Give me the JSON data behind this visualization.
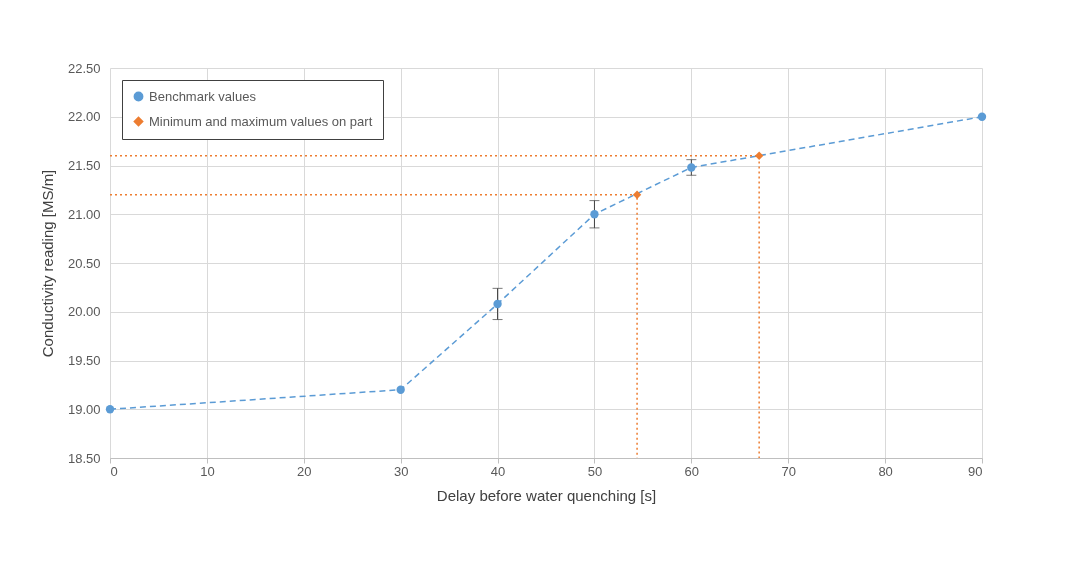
{
  "chart_data": {
    "type": "line",
    "xlabel": "Delay before water quenching [s]",
    "ylabel": "Conductivity reading [MS/m]",
    "xlim": [
      0,
      90
    ],
    "xticks": [
      0,
      10,
      20,
      30,
      40,
      50,
      60,
      70,
      80,
      90
    ],
    "ylim": [
      18.5,
      22.5
    ],
    "yticks": [
      {
        "value": 18.5,
        "label": "18.50"
      },
      {
        "value": 19,
        "label": "19.00"
      },
      {
        "value": 19.5,
        "label": "19.50"
      },
      {
        "value": 20,
        "label": "20.00"
      },
      {
        "value": 20.5,
        "label": "20.50"
      },
      {
        "value": 21,
        "label": "21.00"
      },
      {
        "value": 21.5,
        "label": "21.50"
      },
      {
        "value": 22,
        "label": "22.00"
      },
      {
        "value": 22.5,
        "label": "22.50"
      }
    ],
    "grid": true,
    "legend": "top left",
    "series": [
      {
        "name": "Benchmark values",
        "type": "line",
        "color": "#5b9bd5",
        "line_style": "dashed",
        "marker": "circle",
        "x": [
          0,
          30,
          40,
          50,
          60,
          90
        ],
        "values": [
          19.0,
          19.2,
          20.08,
          21.0,
          21.48,
          22.0
        ],
        "errors": [
          null,
          null,
          0.16,
          0.14,
          0.08,
          null
        ]
      },
      {
        "name": "Minimum and maximum values on part",
        "type": "scatter",
        "color": "#ed7d31",
        "marker": "diamond",
        "x": [
          54.4,
          67
        ],
        "values": [
          21.2,
          21.6
        ]
      },
      {
        "type": "line",
        "color": "#ed7d31",
        "line_style": "dotted",
        "marker": "none",
        "x": [
          0,
          54.4,
          54.4
        ],
        "values": [
          21.2,
          21.2,
          18.5
        ]
      },
      {
        "type": "line",
        "color": "#ed7d31",
        "line_style": "dotted",
        "marker": "none",
        "x": [
          0,
          67,
          67
        ],
        "values": [
          21.6,
          21.6,
          18.5
        ]
      }
    ]
  }
}
